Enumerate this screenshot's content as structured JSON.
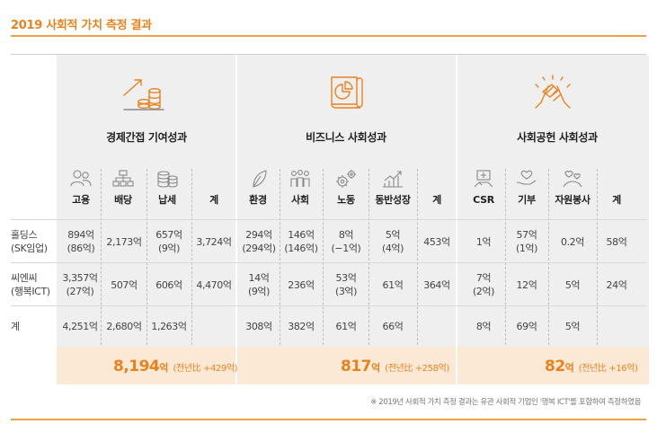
{
  "title": "2019 사회적 가치 측정 결과",
  "sections": [
    {
      "title": "경제간접 기여성과",
      "icon": "coins-growth-icon",
      "columns": [
        "고용",
        "배당",
        "납세",
        "계"
      ]
    },
    {
      "title": "비즈니스 사회성과",
      "icon": "report-chart-icon",
      "columns": [
        "환경",
        "사회",
        "노동",
        "동반성장",
        "계"
      ]
    },
    {
      "title": "사회공헌 사회성과",
      "icon": "joined-hands-icon",
      "columns": [
        "CSR",
        "기부",
        "자원봉사",
        "계"
      ]
    }
  ],
  "rows": [
    {
      "label": [
        "홀딩스",
        "(SK임업)"
      ],
      "cells": [
        [
          "894억",
          "(86억)"
        ],
        [
          "2,173억"
        ],
        [
          "657억",
          "(9억)"
        ],
        [
          "3,724억"
        ],
        [
          "294억",
          "(294억)"
        ],
        [
          "146억",
          "(146억)"
        ],
        [
          "8억",
          "(−1억)"
        ],
        [
          "5억",
          "(4억)"
        ],
        [
          "453억"
        ],
        [
          "1억"
        ],
        [
          "57억",
          "(1억)"
        ],
        [
          "0.2억"
        ],
        [
          "58억"
        ]
      ]
    },
    {
      "label": [
        "씨엔씨",
        "(행복ICT)"
      ],
      "cells": [
        [
          "3,357억",
          "(27억)"
        ],
        [
          "507억"
        ],
        [
          "606억"
        ],
        [
          "4,470억"
        ],
        [
          "14억",
          "(9억)"
        ],
        [
          "236억"
        ],
        [
          "53억",
          "(3억)"
        ],
        [
          "61억"
        ],
        [
          "364억"
        ],
        [
          "7억",
          "(2억)"
        ],
        [
          "12억"
        ],
        [
          "5억"
        ],
        [
          "24억"
        ]
      ]
    },
    {
      "label": [
        "계"
      ],
      "cells": [
        [
          "4,251억"
        ],
        [
          "2,680억"
        ],
        [
          "1,263억"
        ],
        [
          ""
        ],
        [
          "308억"
        ],
        [
          "382억"
        ],
        [
          "61억"
        ],
        [
          "66억"
        ],
        [
          ""
        ],
        [
          "8억"
        ],
        [
          "69억"
        ],
        [
          "5억"
        ],
        [
          ""
        ]
      ]
    }
  ],
  "totals": [
    {
      "value": "8,194",
      "unit": "억",
      "delta": "(전년比 +429억)"
    },
    {
      "value": "817",
      "unit": "억",
      "delta": "(전년比 +258억)"
    },
    {
      "value": "82",
      "unit": "억",
      "delta": "(전년比 +16억)"
    }
  ],
  "footnote": "※ 2019년 사회적 가치 측정 결과는 유관 사회적 기업인 '행복 ICT'를 포함하여 측정하였음",
  "colors": {
    "accent": "#e8821e",
    "panel": "#efefef",
    "total_band": "#fbe9d6"
  },
  "column_icons": [
    "people-icon",
    "org-chart-icon",
    "coin-stack-icon",
    "none",
    "leaf-icon",
    "crowd-icon",
    "gears-icon",
    "growth-chart-icon",
    "none",
    "handshake-box-icon",
    "heart-hand-icon",
    "volunteer-hearts-icon",
    "none"
  ]
}
